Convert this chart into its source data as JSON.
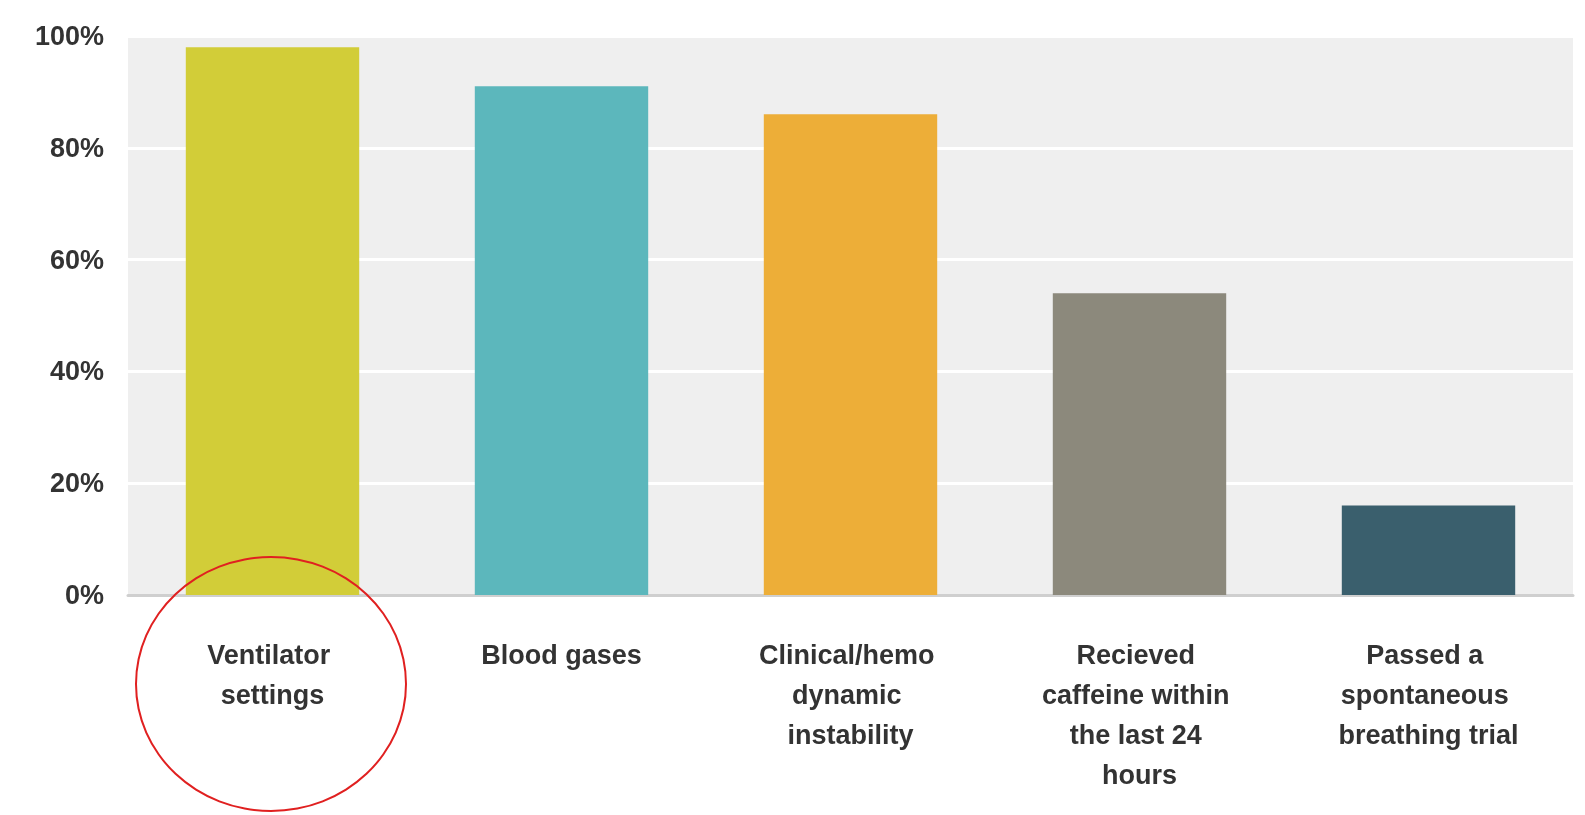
{
  "chart_data": {
    "type": "bar",
    "categories": [
      "Ventilator settings",
      "Blood gases",
      "Clinical/hemo dynamic instability",
      "Recieved caffeine within the last 24 hours",
      "Passed a spontaneous breathing trial"
    ],
    "values": [
      98,
      91,
      86,
      54,
      16
    ],
    "colors": [
      "#d2cd38",
      "#5cb7bc",
      "#edae38",
      "#8c897c",
      "#3a5f6d"
    ],
    "ylim": [
      0,
      100
    ],
    "yticks": [
      {
        "value": 0,
        "label": "0%"
      },
      {
        "value": 20,
        "label": "20%"
      },
      {
        "value": 40,
        "label": "40%"
      },
      {
        "value": 60,
        "label": "60%"
      },
      {
        "value": 80,
        "label": "80%"
      },
      {
        "value": 100,
        "label": "100%"
      }
    ],
    "grid": true
  }
}
